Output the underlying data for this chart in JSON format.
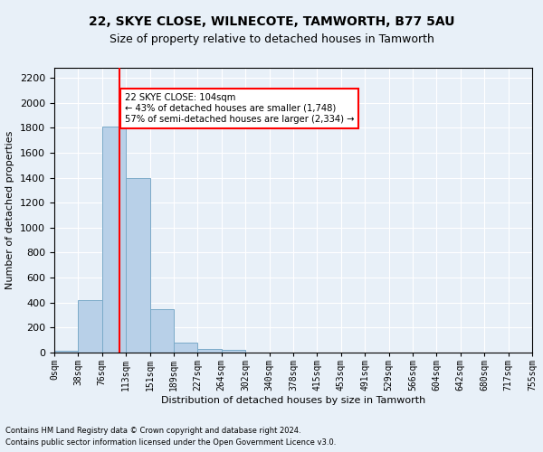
{
  "title": "22, SKYE CLOSE, WILNECOTE, TAMWORTH, B77 5AU",
  "subtitle": "Size of property relative to detached houses in Tamworth",
  "xlabel": "Distribution of detached houses by size in Tamworth",
  "ylabel": "Number of detached properties",
  "bin_labels": [
    "0sqm",
    "38sqm",
    "76sqm",
    "113sqm",
    "151sqm",
    "189sqm",
    "227sqm",
    "264sqm",
    "302sqm",
    "340sqm",
    "378sqm",
    "415sqm",
    "453sqm",
    "491sqm",
    "529sqm",
    "566sqm",
    "604sqm",
    "642sqm",
    "680sqm",
    "717sqm",
    "755sqm"
  ],
  "bar_values": [
    15,
    420,
    1810,
    1400,
    350,
    80,
    32,
    20,
    0,
    0,
    0,
    0,
    0,
    0,
    0,
    0,
    0,
    0,
    0,
    0
  ],
  "bar_color": "#b8d0e8",
  "bar_edge_color": "#7aaac8",
  "property_line_x": 104,
  "bin_width": 38,
  "annotation_text": "22 SKYE CLOSE: 104sqm\n← 43% of detached houses are smaller (1,748)\n57% of semi-detached houses are larger (2,334) →",
  "annotation_box_color": "white",
  "annotation_box_edge": "red",
  "ylim": [
    0,
    2280
  ],
  "yticks": [
    0,
    200,
    400,
    600,
    800,
    1000,
    1200,
    1400,
    1600,
    1800,
    2000,
    2200
  ],
  "footer_line1": "Contains HM Land Registry data © Crown copyright and database right 2024.",
  "footer_line2": "Contains public sector information licensed under the Open Government Licence v3.0.",
  "background_color": "#e8f0f8",
  "axes_background": "#e8f0f8",
  "grid_color": "white",
  "title_fontsize": 10,
  "subtitle_fontsize": 9,
  "tick_fontsize": 7,
  "ylabel_fontsize": 8,
  "xlabel_fontsize": 8,
  "footer_fontsize": 6
}
